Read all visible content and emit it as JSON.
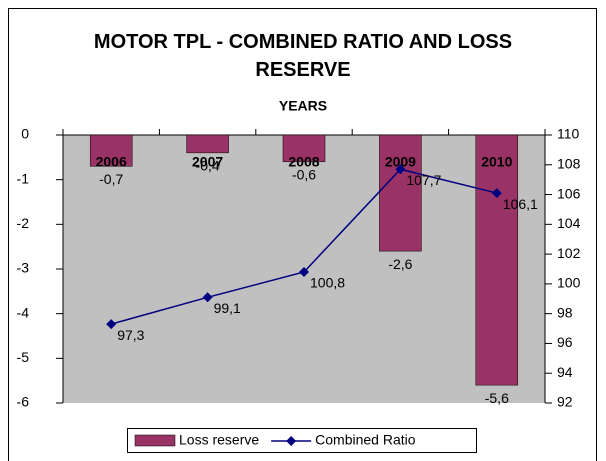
{
  "chart_data": {
    "type": "bar",
    "title": "MOTOR TPL - COMBINED RATIO AND LOSS RESERVE",
    "x_label": "YEARS",
    "categories": [
      "2006",
      "2007",
      "2008",
      "2009",
      "2010"
    ],
    "series": [
      {
        "name": "Loss reserve",
        "type": "bar",
        "color": "#993366",
        "values": [
          -0.7,
          -0.4,
          -0.6,
          -2.6,
          -5.6
        ],
        "value_labels": [
          "-0,7",
          "-0,4",
          "-0,6",
          "-2,6",
          "-5,6"
        ]
      },
      {
        "name": "Combined Ratio",
        "type": "line",
        "axis": "y2",
        "color": "#000080",
        "values": [
          97.3,
          99.1,
          100.8,
          107.7,
          106.1
        ],
        "value_labels": [
          "97,3",
          "99,1",
          "100,8",
          "107,7",
          "106,1"
        ]
      }
    ],
    "ylim": [
      -6,
      0
    ],
    "yticks": [
      0,
      -1,
      -2,
      -3,
      -4,
      -5,
      -6
    ],
    "y2lim": [
      92,
      110
    ],
    "y2ticks": [
      92,
      94,
      96,
      98,
      100,
      102,
      104,
      106,
      108,
      110
    ],
    "legend": "bottom",
    "background": "#c0c0c0"
  }
}
